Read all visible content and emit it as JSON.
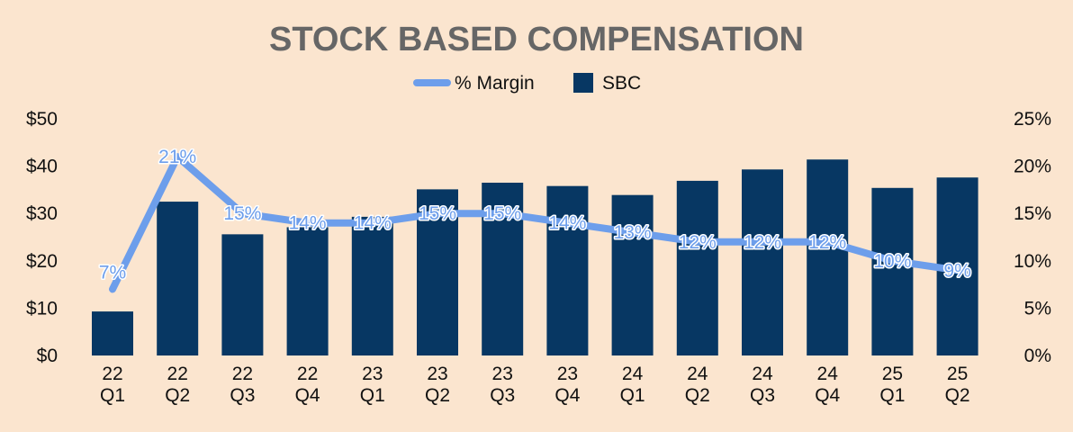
{
  "chart_data": {
    "type": "bar+line",
    "title": "STOCK BASED COMPENSATION",
    "categories": [
      [
        "22",
        "Q1"
      ],
      [
        "22",
        "Q2"
      ],
      [
        "22",
        "Q3"
      ],
      [
        "22",
        "Q4"
      ],
      [
        "23",
        "Q1"
      ],
      [
        "23",
        "Q2"
      ],
      [
        "23",
        "Q3"
      ],
      [
        "23",
        "Q4"
      ],
      [
        "24",
        "Q1"
      ],
      [
        "24",
        "Q2"
      ],
      [
        "24",
        "Q3"
      ],
      [
        "24",
        "Q4"
      ],
      [
        "25",
        "Q1"
      ],
      [
        "25",
        "Q2"
      ]
    ],
    "series": [
      {
        "name": "SBC",
        "type": "bar",
        "axis": "left",
        "color": "#073763",
        "values": [
          9.3,
          32.5,
          25.6,
          27.1,
          29.3,
          35.1,
          36.5,
          35.8,
          33.9,
          36.9,
          39.3,
          41.4,
          35.4,
          37.6
        ]
      },
      {
        "name": "% Margin",
        "type": "line",
        "axis": "right",
        "color": "#6d9eeb",
        "values": [
          7,
          21,
          15,
          14,
          14,
          15,
          15,
          14,
          13,
          12,
          12,
          12,
          10,
          9
        ],
        "labels": [
          "7%",
          "21%",
          "15%",
          "14%",
          "14%",
          "15%",
          "15%",
          "14%",
          "13%",
          "12%",
          "12%",
          "12%",
          "10%",
          "9%"
        ]
      }
    ],
    "y_left": {
      "range": [
        0,
        50
      ],
      "ticks": [
        "$0",
        "$10",
        "$20",
        "$30",
        "$40",
        "$50"
      ]
    },
    "y_right": {
      "range": [
        0,
        25
      ],
      "ticks": [
        "0%",
        "5%",
        "10%",
        "15%",
        "20%",
        "25%"
      ]
    },
    "legend": {
      "position": "top-center",
      "entries": [
        "% Margin",
        "SBC"
      ]
    },
    "grid": false
  }
}
